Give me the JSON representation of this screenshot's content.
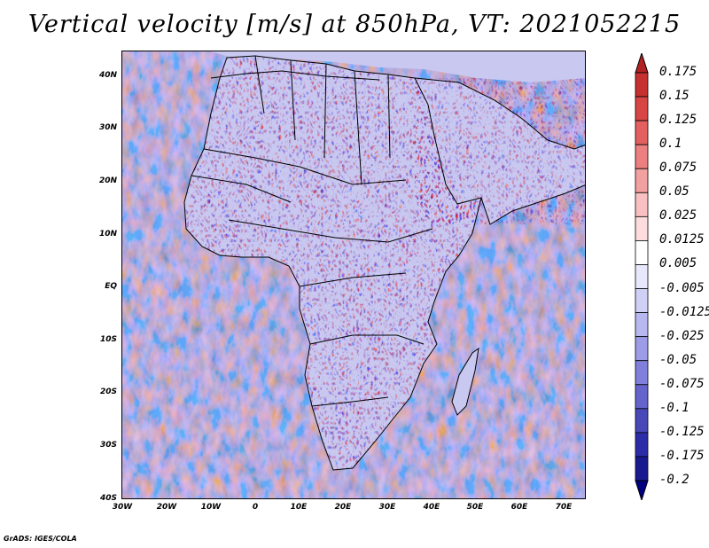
{
  "title": "Vertical velocity [m/s] at 850hPa, VT: 2021052215",
  "credit": "GrADS: IGES/COLA",
  "map": {
    "lat_labels": [
      "40N",
      "30N",
      "20N",
      "10N",
      "EQ",
      "10S",
      "20S",
      "30S",
      "40S"
    ],
    "lon_labels": [
      "30W",
      "20W",
      "10W",
      "0",
      "10E",
      "20E",
      "30E",
      "40E",
      "50E",
      "60E",
      "70E"
    ],
    "field_colors": {
      "rising_strong": "#b22222",
      "rising_weak": "#f4a8a8",
      "neutral": "#ffffff",
      "sinking_weak": "#b8b8f0",
      "sinking_strong": "#3a3ab8"
    },
    "coastline_color": "#000000"
  },
  "colorbar": {
    "labels": [
      "0.175",
      "0.15",
      "0.125",
      "0.1",
      "0.075",
      "0.05",
      "0.025",
      "0.0125",
      "0.005",
      "-0.005",
      "-0.0125",
      "-0.025",
      "-0.05",
      "-0.075",
      "-0.1",
      "-0.125",
      "-0.175",
      "-0.2"
    ],
    "colors": [
      "#b22222",
      "#c63030",
      "#d74545",
      "#e46060",
      "#ec8080",
      "#f2a0a0",
      "#f8c0c0",
      "#fcdcdc",
      "#ffffff",
      "#e8e8fc",
      "#d0d0f6",
      "#b8b8f0",
      "#9c9ce8",
      "#8080dc",
      "#6464cc",
      "#4848b8",
      "#2c2ca8",
      "#1a1a90",
      "#000080"
    ]
  }
}
